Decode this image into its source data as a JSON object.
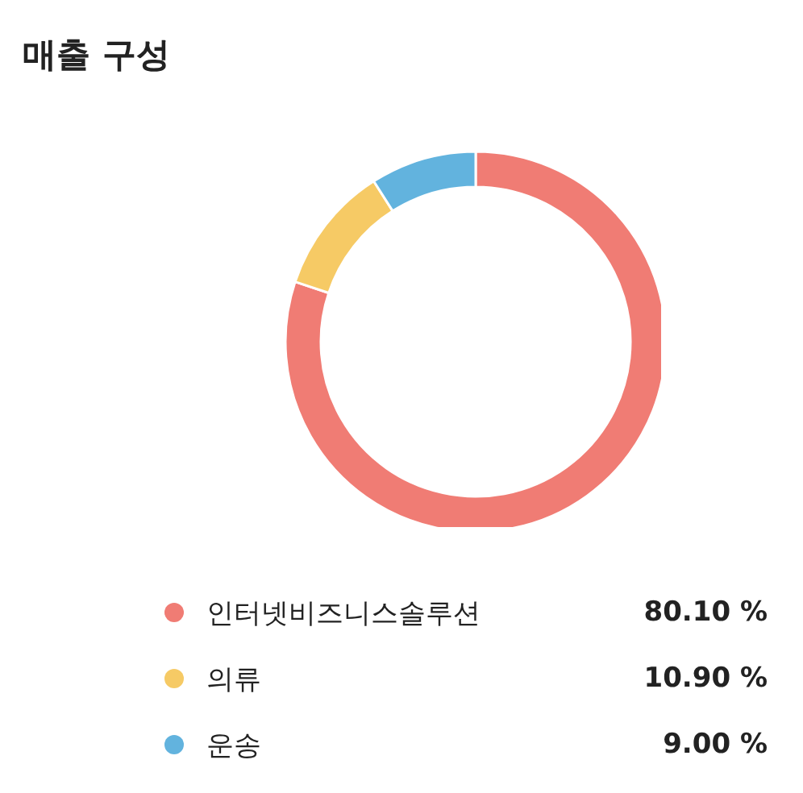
{
  "chart_data": {
    "type": "donut",
    "title": "매출 구성",
    "categories": [
      "인터넷비즈니스솔루션",
      "의류",
      "운송"
    ],
    "values": [
      80.1,
      10.9,
      9.0
    ],
    "colors": [
      "#f07c74",
      "#f6ca65",
      "#62b3de"
    ],
    "value_labels": [
      "80.10 %",
      "10.90 %",
      "9.00 %"
    ],
    "legend": "bottom"
  }
}
